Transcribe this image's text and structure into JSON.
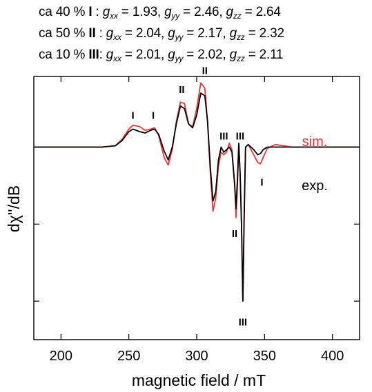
{
  "header": {
    "lines": [
      {
        "share": "ca 40 %",
        "label": "I",
        "sep": " : ",
        "gxx": "1.93",
        "gyy": "2.46",
        "gzz": "2.64"
      },
      {
        "share": "ca 50 %",
        "label": "II",
        "sep": " : ",
        "gxx": "2.04",
        "gyy": "2.17",
        "gzz": "2.32"
      },
      {
        "share": "ca 10 %",
        "label": "III",
        "sep": ": ",
        "gxx": "2.01",
        "gyy": "2.02",
        "gzz": "2.11"
      }
    ],
    "g": "g",
    "sub_xx": "xx",
    "sub_yy": "yy",
    "sub_zz": "zz",
    "eq": " = ",
    "comma": ", "
  },
  "chart_data": {
    "type": "line",
    "xlabel": "magnetic field / mT",
    "ylabel": "dχ''/dB",
    "xlim": [
      180,
      420
    ],
    "ylim": [
      -1.5,
      0.55
    ],
    "xticks": [
      200,
      250,
      300,
      350,
      400
    ],
    "yticks": [
      -1.2,
      -0.6
    ],
    "grid": false,
    "legend": [
      {
        "name": "sim.",
        "color": "#e8383d"
      },
      {
        "name": "exp.",
        "color": "#000000"
      }
    ],
    "series": [
      {
        "name": "sim.",
        "color": "#e8383d",
        "x": [
          180,
          230,
          240,
          245,
          250,
          253,
          258,
          262,
          266,
          269,
          272,
          276,
          279,
          282,
          285,
          288,
          291,
          294,
          297,
          300,
          303,
          306,
          308,
          310,
          312,
          314,
          316,
          318,
          320,
          322,
          324,
          326,
          328,
          329,
          330,
          331,
          332,
          333,
          334,
          335,
          336,
          338,
          340,
          342,
          345,
          347,
          349,
          352,
          358,
          370,
          420
        ],
        "y": [
          0.0,
          0.0,
          0.01,
          0.06,
          0.14,
          0.17,
          0.16,
          0.13,
          0.14,
          0.15,
          0.09,
          -0.08,
          -0.14,
          -0.02,
          0.2,
          0.35,
          0.34,
          0.18,
          0.16,
          0.3,
          0.5,
          0.46,
          0.2,
          -0.2,
          -0.5,
          -0.4,
          -0.15,
          -0.04,
          -0.06,
          -0.04,
          0.03,
          -0.02,
          -0.3,
          -0.55,
          -0.3,
          0.0,
          -0.2,
          -0.6,
          -1.2,
          -0.5,
          0.0,
          0.02,
          -0.02,
          -0.06,
          -0.12,
          -0.13,
          -0.08,
          -0.01,
          0.02,
          0.0,
          0.0
        ]
      },
      {
        "name": "exp.",
        "color": "#000000",
        "x": [
          180,
          230,
          240,
          245,
          250,
          253,
          258,
          262,
          266,
          269,
          272,
          276,
          279,
          282,
          285,
          288,
          291,
          294,
          297,
          300,
          303,
          306,
          308,
          310,
          312,
          314,
          316,
          318,
          320,
          322,
          324,
          326,
          328,
          329,
          330,
          331,
          332,
          333,
          334,
          335,
          336,
          338,
          340,
          342,
          345,
          347,
          349,
          352,
          358,
          370,
          420
        ],
        "y": [
          0.0,
          0.0,
          0.01,
          0.05,
          0.12,
          0.14,
          0.12,
          0.11,
          0.13,
          0.14,
          0.1,
          -0.03,
          -0.1,
          0.0,
          0.18,
          0.32,
          0.3,
          0.18,
          0.15,
          0.25,
          0.42,
          0.4,
          0.2,
          -0.15,
          -0.42,
          -0.35,
          -0.1,
          0.0,
          -0.04,
          -0.02,
          0.0,
          -0.04,
          -0.3,
          -0.48,
          -0.25,
          0.03,
          -0.2,
          -0.6,
          -1.2,
          -0.55,
          0.0,
          0.02,
          0.0,
          -0.02,
          -0.06,
          -0.05,
          -0.02,
          0.0,
          0.0,
          0.0,
          0.0
        ]
      }
    ],
    "annotations": [
      {
        "text": "I",
        "x": 253,
        "y": 0.22
      },
      {
        "text": "I",
        "x": 268,
        "y": 0.22
      },
      {
        "text": "II",
        "x": 289,
        "y": 0.42
      },
      {
        "text": "II",
        "x": 306,
        "y": 0.57
      },
      {
        "text": "III",
        "x": 320,
        "y": 0.06
      },
      {
        "text": "III",
        "x": 332,
        "y": 0.06
      },
      {
        "text": "I",
        "x": 348,
        "y": -0.3
      },
      {
        "text": "II",
        "x": 328,
        "y": -0.7
      },
      {
        "text": "III",
        "x": 334,
        "y": -1.39
      }
    ]
  }
}
